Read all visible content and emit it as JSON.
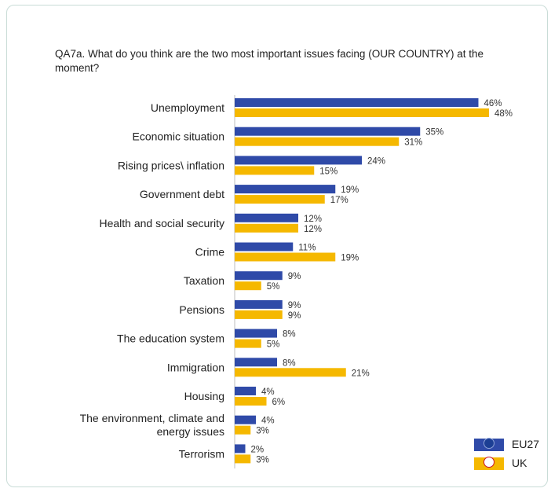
{
  "question": "QA7a. What do you think are the two most important issues facing (OUR COUNTRY) at the moment?",
  "colors": {
    "EU27": "#2f4aa8",
    "UK": "#f5b800"
  },
  "legend": [
    {
      "label": "EU27",
      "icon": "eu-flag-icon"
    },
    {
      "label": "UK",
      "icon": "uk-flag-icon"
    }
  ],
  "chart_data": {
    "type": "bar",
    "orientation": "horizontal",
    "categories": [
      "Unemployment",
      "Economic situation",
      "Rising prices\\ inflation",
      "Government debt",
      "Health and social security",
      "Crime",
      "Taxation",
      "Pensions",
      "The education system",
      "Immigration",
      "Housing",
      "The environment, climate and energy issues",
      "Terrorism"
    ],
    "category_lines": [
      [
        "Unemployment"
      ],
      [
        "Economic situation"
      ],
      [
        "Rising prices\\ inflation"
      ],
      [
        "Government debt"
      ],
      [
        "Health and social security"
      ],
      [
        "Crime"
      ],
      [
        "Taxation"
      ],
      [
        "Pensions"
      ],
      [
        "The education system"
      ],
      [
        "Immigration"
      ],
      [
        "Housing"
      ],
      [
        "The environment, climate and",
        "energy issues"
      ],
      [
        "Terrorism"
      ]
    ],
    "series": [
      {
        "name": "EU27",
        "values": [
          46,
          35,
          24,
          19,
          12,
          11,
          9,
          9,
          8,
          8,
          4,
          4,
          2
        ]
      },
      {
        "name": "UK",
        "values": [
          48,
          31,
          15,
          17,
          12,
          19,
          5,
          9,
          5,
          21,
          6,
          3,
          3
        ]
      }
    ],
    "value_suffix": "%",
    "xlim": [
      0,
      50
    ],
    "grid": false,
    "legend_position": "bottom-right"
  }
}
